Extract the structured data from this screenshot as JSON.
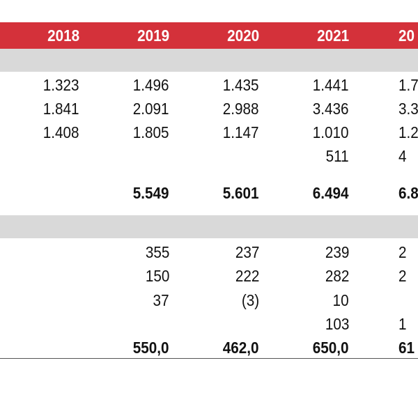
{
  "header": {
    "years": [
      "2018",
      "2019",
      "2020",
      "2021",
      "20"
    ]
  },
  "section1": {
    "rows": [
      [
        "1.323",
        "1.496",
        "1.435",
        "1.441",
        "1.7"
      ],
      [
        "1.841",
        "2.091",
        "2.988",
        "3.436",
        "3.3"
      ],
      [
        "1.408",
        "1.805",
        "1.147",
        "1.010",
        "1.2"
      ],
      [
        "",
        "",
        "",
        "511",
        "4"
      ]
    ],
    "total": [
      "",
      "5.549",
      "5.601",
      "6.494",
      "6.8"
    ]
  },
  "section2": {
    "rows": [
      [
        "",
        "355",
        "237",
        "239",
        "2"
      ],
      [
        "",
        "150",
        "222",
        "282",
        "2"
      ],
      [
        "",
        "37",
        "(3)",
        "10",
        ""
      ],
      [
        "",
        "",
        "",
        "103",
        "1"
      ]
    ],
    "total": [
      "",
      "550,0",
      "462,0",
      "650,0",
      "61"
    ]
  },
  "colors": {
    "header_bg": "#d4313a",
    "band_bg": "#d9d9d9"
  }
}
